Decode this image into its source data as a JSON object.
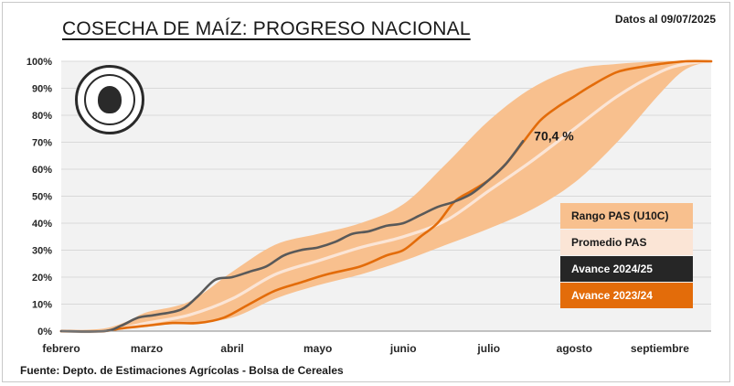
{
  "header": {
    "title": "COSECHA DE MAÍZ: PROGRESO NACIONAL",
    "date": "Datos al 09/07/2025"
  },
  "footer": {
    "source": "Fuente: Depto. de Estimaciones Agrícolas - Bolsa de Cereales"
  },
  "logo": {
    "text": "Bolsa de Cereales"
  },
  "colors": {
    "range": "#f8c08e",
    "average": "#fbe5d6",
    "current": "#595959",
    "previous": "#e36c0a",
    "grid": "#d9d9d9",
    "plot_bg": "#f2f2f2"
  },
  "legend": [
    {
      "label": "Rango PAS (U10C)",
      "bg": "#f8c08e",
      "fg": "#1a1a1a"
    },
    {
      "label": "Promedio PAS",
      "bg": "#fbe5d6",
      "fg": "#1a1a1a"
    },
    {
      "label": "Avance 2024/25",
      "bg": "#262626",
      "fg": "#ffffff"
    },
    {
      "label": "Avance 2023/24",
      "bg": "#e36c0a",
      "fg": "#ffffff"
    }
  ],
  "chart_data": {
    "type": "area",
    "x_unit": "month index (0 = febrero, 1 = marzo, ... 7 = septiembre)",
    "xlim": [
      0,
      7.6
    ],
    "x_ticks": [
      {
        "x": 0,
        "label": "febrero"
      },
      {
        "x": 1,
        "label": "marzo"
      },
      {
        "x": 2,
        "label": "abril"
      },
      {
        "x": 3,
        "label": "mayo"
      },
      {
        "x": 4,
        "label": "junio"
      },
      {
        "x": 5,
        "label": "julio"
      },
      {
        "x": 6,
        "label": "agosto"
      },
      {
        "x": 7,
        "label": "septiembre"
      }
    ],
    "ylim": [
      0,
      100
    ],
    "y_ticks": [
      0,
      10,
      20,
      30,
      40,
      50,
      60,
      70,
      80,
      90,
      100
    ],
    "y_tick_labels": [
      "0%",
      "10%",
      "20%",
      "30%",
      "40%",
      "50%",
      "60%",
      "70%",
      "80%",
      "90%",
      "100%"
    ],
    "grid": true,
    "legend_position": "bottom-right",
    "annotation": {
      "text": "70,4 %",
      "series": "Avance 2024/25"
    },
    "range_band": {
      "name": "Rango PAS (U10C)",
      "x": [
        0.0,
        0.5,
        0.8,
        1.0,
        1.5,
        2.0,
        2.5,
        3.0,
        3.5,
        4.0,
        4.5,
        5.0,
        5.5,
        6.0,
        6.5,
        7.0,
        7.3,
        7.6
      ],
      "upper": [
        0,
        1,
        4,
        7,
        11,
        22,
        32,
        36,
        40,
        47,
        62,
        78,
        90,
        97,
        99,
        100,
        100,
        100
      ],
      "lower": [
        0,
        0,
        1,
        2,
        3,
        5,
        12,
        17,
        21,
        26,
        32,
        38,
        45,
        55,
        70,
        88,
        97,
        100
      ]
    },
    "series": [
      {
        "name": "Promedio PAS",
        "x": [
          0.0,
          0.5,
          1.0,
          1.5,
          2.0,
          2.5,
          3.0,
          3.5,
          4.0,
          4.5,
          5.0,
          5.5,
          6.0,
          6.5,
          7.0,
          7.3,
          7.6
        ],
        "values": [
          0,
          0,
          3,
          6,
          12,
          21,
          26,
          31,
          35,
          41,
          52,
          63,
          75,
          87,
          96,
          99,
          100
        ]
      },
      {
        "name": "Avance 2024/25",
        "x": [
          0.0,
          0.5,
          0.7,
          0.9,
          1.1,
          1.4,
          1.6,
          1.8,
          2.0,
          2.2,
          2.4,
          2.6,
          2.8,
          3.0,
          3.2,
          3.4,
          3.6,
          3.8,
          4.0,
          4.2,
          4.4,
          4.6,
          4.8,
          5.0,
          5.2,
          5.4
        ],
        "values": [
          0,
          0,
          2,
          5,
          6,
          8,
          13,
          19,
          20,
          22,
          24,
          28,
          30,
          31,
          33,
          36,
          37,
          39,
          40,
          43,
          46,
          48,
          51,
          56,
          62,
          70.4
        ]
      },
      {
        "name": "Avance 2023/24",
        "x": [
          0.0,
          0.5,
          0.7,
          1.0,
          1.3,
          1.6,
          1.9,
          2.2,
          2.5,
          2.8,
          3.1,
          3.5,
          3.8,
          4.0,
          4.2,
          4.4,
          4.6,
          4.8,
          5.0,
          5.2,
          5.4,
          5.6,
          5.8,
          6.0,
          6.2,
          6.5,
          6.8,
          7.0,
          7.3,
          7.6
        ],
        "values": [
          0,
          0,
          1,
          2,
          3,
          3,
          5,
          10,
          15,
          18,
          21,
          24,
          28,
          30,
          35,
          40,
          48,
          52,
          56,
          62,
          70,
          78,
          83,
          87,
          91,
          96,
          98,
          99,
          100,
          100
        ]
      }
    ]
  }
}
